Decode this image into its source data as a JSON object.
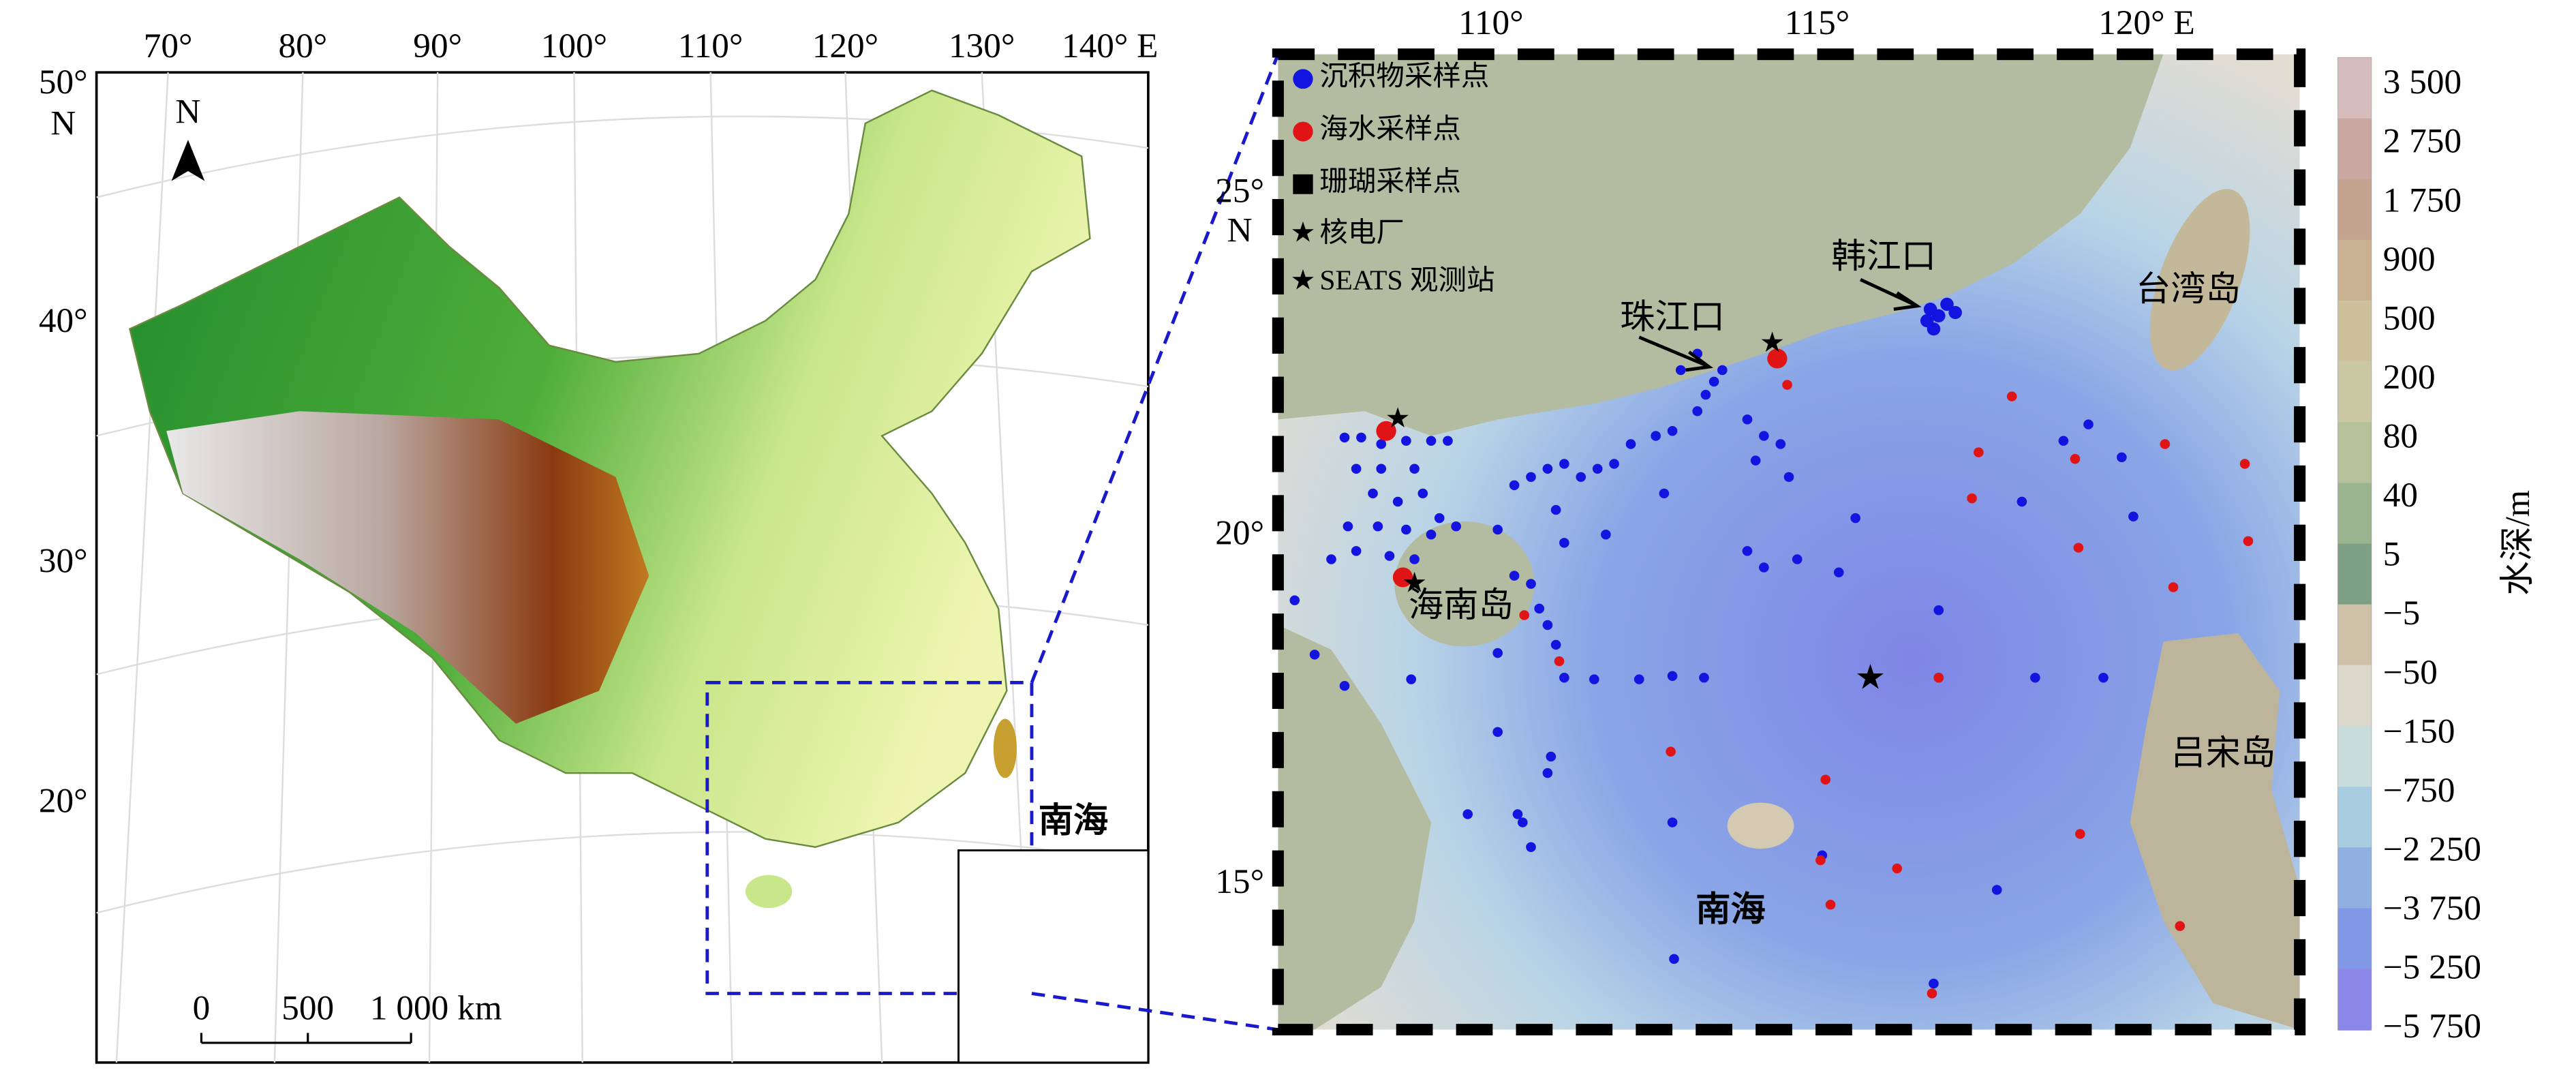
{
  "left_map": {
    "lon_labels": [
      "70°",
      "80°",
      "90°",
      "100°",
      "110°",
      "120°",
      "130°",
      "140° E"
    ],
    "lat_labels": [
      "50°",
      "40°",
      "30°",
      "20°"
    ],
    "lat_hemisphere": "N",
    "north": "N",
    "scale_bar": [
      "0",
      "500",
      "1 000 km"
    ],
    "inset_label": "南海"
  },
  "right_map": {
    "lon_labels": [
      "110°",
      "115°",
      "120° E"
    ],
    "lat_labels": [
      "25°",
      "20°",
      "15°"
    ],
    "lat_hemisphere": "N",
    "legend": [
      "沉积物采样点",
      "海水采样点",
      "珊瑚采样点",
      "核电厂",
      "SEATS 观测站"
    ],
    "places": [
      "韩江口",
      "珠江口",
      "台湾岛",
      "海南岛",
      "吕宋岛",
      "南海"
    ]
  },
  "colorbar": {
    "title": "水深/m",
    "labels": [
      "3 500",
      "2 750",
      "1 750",
      "900",
      "500",
      "200",
      "80",
      "40",
      "5",
      "−5",
      "−50",
      "−150",
      "−750",
      "−2 250",
      "−3 750",
      "−5 250",
      "−5 750"
    ]
  }
}
